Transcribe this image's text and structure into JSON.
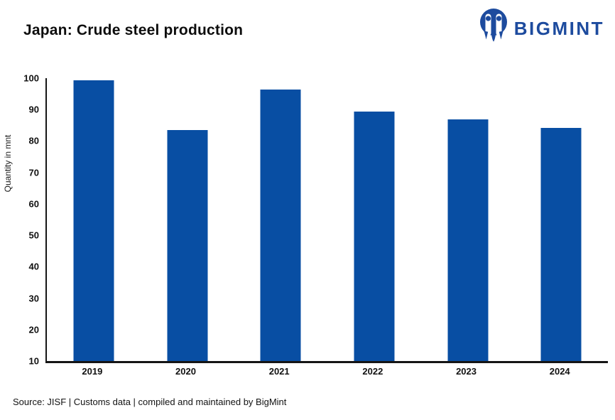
{
  "header": {
    "title": "Japan: Crude steel production",
    "logo_text": "BIGMINT",
    "logo_color": "#1d4b9e",
    "logo_icon": "bigmint-owl-mark"
  },
  "chart_data": {
    "type": "bar",
    "title": "Japan: Crude steel production",
    "categories": [
      "2019",
      "2020",
      "2021",
      "2022",
      "2023",
      "2024"
    ],
    "values": [
      99.3,
      83.5,
      96.3,
      89.3,
      87.0,
      84.2
    ],
    "xlabel": "",
    "ylabel": "Quantity in mnt",
    "ylim": [
      10,
      100
    ],
    "yticks": [
      100,
      90,
      80,
      70,
      60,
      50,
      40,
      30,
      20,
      10
    ],
    "bar_color": "#084ea3",
    "axis_color": "#151515",
    "grid": false,
    "legend": null
  },
  "footer": {
    "source_text": "Source: JISF | Customs data | compiled and maintained by BigMint"
  }
}
